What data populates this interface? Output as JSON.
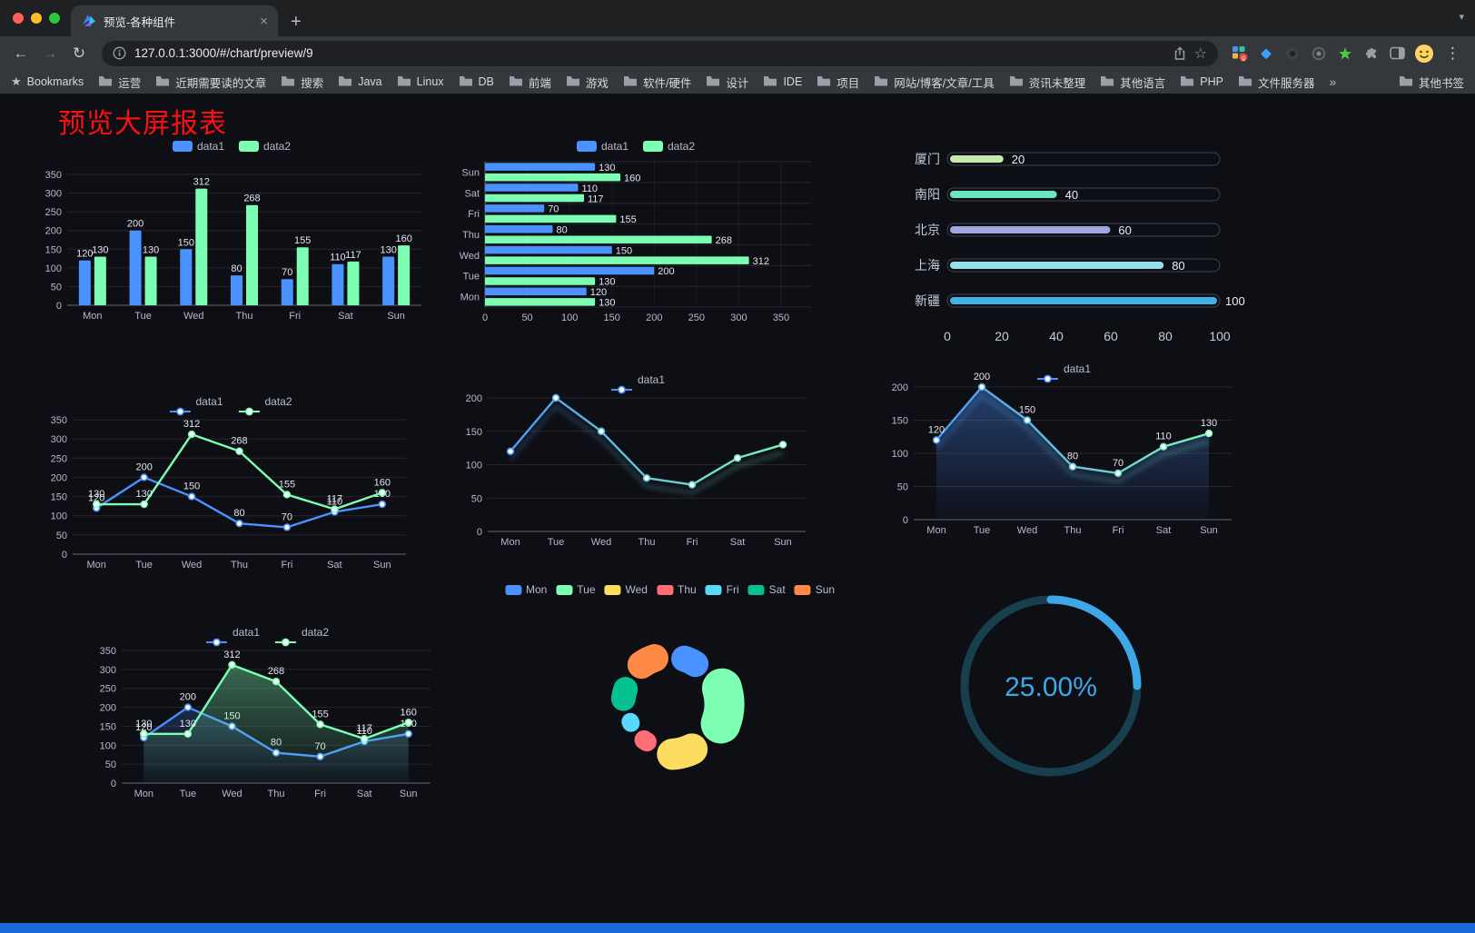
{
  "browser": {
    "tab": {
      "title": "预览-各种组件"
    },
    "url": "127.0.0.1:3000/#/chart/preview/9",
    "bookmarks_label": "Bookmarks",
    "bookmarks": [
      "运营",
      "近期需要读的文章",
      "搜索",
      "Java",
      "Linux",
      "DB",
      "前端",
      "游戏",
      "软件/硬件",
      "设计",
      "IDE",
      "项目",
      "网站/博客/文章/工具",
      "资讯未整理",
      "其他语言",
      "PHP",
      "文件服务器"
    ],
    "bookmarks_overflow": "»",
    "other_bookmarks": "其他书签"
  },
  "page": {
    "title": "预览大屏报表",
    "title_color": "#fb1010",
    "accent_color": "#1868d8",
    "background": "#0e0e15"
  },
  "chart_data": [
    {
      "id": "bar-grouped",
      "type": "bar",
      "legend": true,
      "legend_icon": "rect",
      "categories": [
        "Mon",
        "Tue",
        "Wed",
        "Thu",
        "Fri",
        "Sat",
        "Sun"
      ],
      "series": [
        {
          "name": "data1",
          "color": "#4992ff",
          "values": [
            120,
            200,
            150,
            80,
            70,
            110,
            130
          ]
        },
        {
          "name": "data2",
          "color": "#7cffb2",
          "values": [
            130,
            130,
            312,
            268,
            155,
            117,
            160
          ]
        }
      ],
      "ylim": [
        0,
        350
      ],
      "ytick": 50
    },
    {
      "id": "bar-horizontal",
      "type": "hbar",
      "legend": true,
      "legend_icon": "rect",
      "categories": [
        "Mon",
        "Tue",
        "Wed",
        "Thu",
        "Fri",
        "Sat",
        "Sun"
      ],
      "series": [
        {
          "name": "data1",
          "color": "#4992ff",
          "values": [
            120,
            200,
            150,
            80,
            70,
            110,
            130
          ]
        },
        {
          "name": "data2",
          "color": "#7cffb2",
          "values": [
            130,
            130,
            312,
            268,
            155,
            117,
            160
          ]
        }
      ],
      "xlim": [
        0,
        350
      ],
      "xtick": 50
    },
    {
      "id": "capsule",
      "type": "capsule",
      "xmax": 100,
      "xticks": [
        0,
        20,
        40,
        60,
        80,
        100
      ],
      "rows": [
        {
          "name": "厦门",
          "value": 20,
          "color": "#c4ebad"
        },
        {
          "name": "南阳",
          "value": 40,
          "color": "#6be6c1"
        },
        {
          "name": "北京",
          "value": 60,
          "color": "#a0a7e6"
        },
        {
          "name": "上海",
          "value": 80,
          "color": "#96dee8"
        },
        {
          "name": "新疆",
          "value": 100,
          "color": "#3fb1e3"
        }
      ]
    },
    {
      "id": "line-two",
      "type": "line",
      "legend": true,
      "legend_icon": "line",
      "categories": [
        "Mon",
        "Tue",
        "Wed",
        "Thu",
        "Fri",
        "Sat",
        "Sun"
      ],
      "series": [
        {
          "name": "data1",
          "color": "#4992ff",
          "values": [
            120,
            200,
            150,
            80,
            70,
            110,
            130
          ],
          "labels": true
        },
        {
          "name": "data2",
          "color": "#7cffb2",
          "values": [
            130,
            130,
            312,
            268,
            155,
            117,
            160
          ],
          "labels": true
        }
      ],
      "ylim": [
        0,
        350
      ],
      "ytick": 50
    },
    {
      "id": "line-gradient",
      "type": "line",
      "legend": true,
      "legend_icon": "line",
      "shadow": true,
      "categories": [
        "Mon",
        "Tue",
        "Wed",
        "Thu",
        "Fri",
        "Sat",
        "Sun"
      ],
      "series": [
        {
          "name": "data1",
          "color": "#4992ff",
          "gradient": [
            "#4992ff",
            "#7cffb2"
          ],
          "values": [
            120,
            200,
            150,
            80,
            70,
            110,
            130
          ]
        }
      ],
      "ylim": [
        0,
        200
      ],
      "ytick": 50
    },
    {
      "id": "line-area",
      "type": "line",
      "legend": true,
      "legend_icon": "line",
      "shadow": true,
      "categories": [
        "Mon",
        "Tue",
        "Wed",
        "Thu",
        "Fri",
        "Sat",
        "Sun"
      ],
      "series": [
        {
          "name": "data1",
          "color": "#4992ff",
          "gradient": [
            "#4992ff",
            "#7cffb2"
          ],
          "values": [
            120,
            200,
            150,
            80,
            70,
            110,
            130
          ],
          "area": true,
          "area_opacity": 0.38,
          "labels": true
        }
      ],
      "ylim": [
        0,
        200
      ],
      "ytick": 50
    },
    {
      "id": "line-two-area",
      "type": "line",
      "legend": true,
      "legend_icon": "line",
      "categories": [
        "Mon",
        "Tue",
        "Wed",
        "Thu",
        "Fri",
        "Sat",
        "Sun"
      ],
      "series": [
        {
          "name": "data1",
          "color": "#4992ff",
          "values": [
            120,
            200,
            150,
            80,
            70,
            110,
            130
          ],
          "area": true,
          "area_opacity": 0.22,
          "labels": true
        },
        {
          "name": "data2",
          "color": "#7cffb2",
          "values": [
            130,
            130,
            312,
            268,
            155,
            117,
            160
          ],
          "area": true,
          "area_opacity": 0.38,
          "labels": true
        }
      ],
      "ylim": [
        0,
        350
      ],
      "ytick": 50
    },
    {
      "id": "pie-rose",
      "type": "pie",
      "legend": true,
      "legend_icon": "rect",
      "slices": [
        {
          "name": "Mon",
          "value": 120,
          "color": "#4992ff"
        },
        {
          "name": "Tue",
          "value": 200,
          "color": "#7cffb2"
        },
        {
          "name": "Wed",
          "value": 150,
          "color": "#fddd60"
        },
        {
          "name": "Thu",
          "value": 80,
          "color": "#ff6e76"
        },
        {
          "name": "Fri",
          "value": 70,
          "color": "#58d9f9"
        },
        {
          "name": "Sat",
          "value": 110,
          "color": "#05c091"
        },
        {
          "name": "Sun",
          "value": 130,
          "color": "#ff8a45"
        }
      ]
    },
    {
      "id": "gauge",
      "type": "gauge",
      "value": 25,
      "label": "25.00%",
      "color": "#3fa7e6",
      "track": "#173f4e"
    }
  ]
}
